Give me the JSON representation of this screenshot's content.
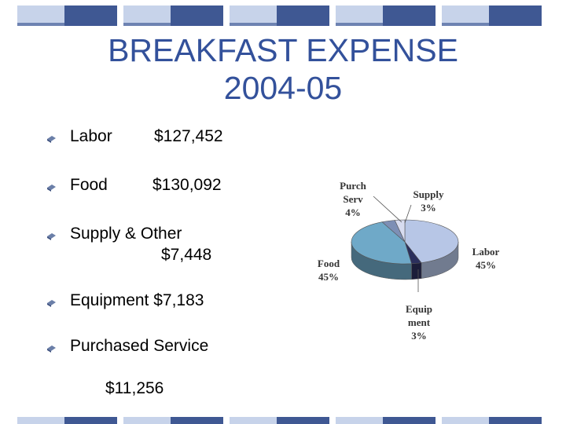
{
  "slide": {
    "title_line1": "BREAKFAST EXPENSE",
    "title_line2": "2004-05"
  },
  "bullets": [
    {
      "label": "Labor",
      "amount": "$127,452"
    },
    {
      "label": "Food",
      "amount": "$130,092"
    },
    {
      "label": "Supply & Other",
      "amount": "$7,448"
    },
    {
      "label": "Equipment $7,183",
      "amount": ""
    },
    {
      "label": "Purchased Service",
      "amount": "$11,256"
    }
  ],
  "chart_data": {
    "type": "pie",
    "title": "",
    "categories": [
      "Labor",
      "Equipment",
      "Food",
      "Purch Serv",
      "Supply"
    ],
    "values": [
      45,
      3,
      45,
      4,
      3
    ],
    "labels": [
      {
        "line1": "Labor",
        "line2": "45%"
      },
      {
        "line1": "Equip",
        "line2": "ment",
        "line3": "3%"
      },
      {
        "line1": "Food",
        "line2": "45%"
      },
      {
        "line1": "Purch",
        "line2": "Serv",
        "line3": "4%"
      },
      {
        "line1": "Supply",
        "line2": "3%"
      }
    ],
    "colors": [
      "#b7c6e6",
      "#2b2f5c",
      "#6fa9c8",
      "#7d8fb5",
      "#d7dcf0"
    ]
  },
  "theme": {
    "title_color": "#33519b",
    "band_light": "#c7d3ea",
    "band_dark": "#3f5893"
  }
}
